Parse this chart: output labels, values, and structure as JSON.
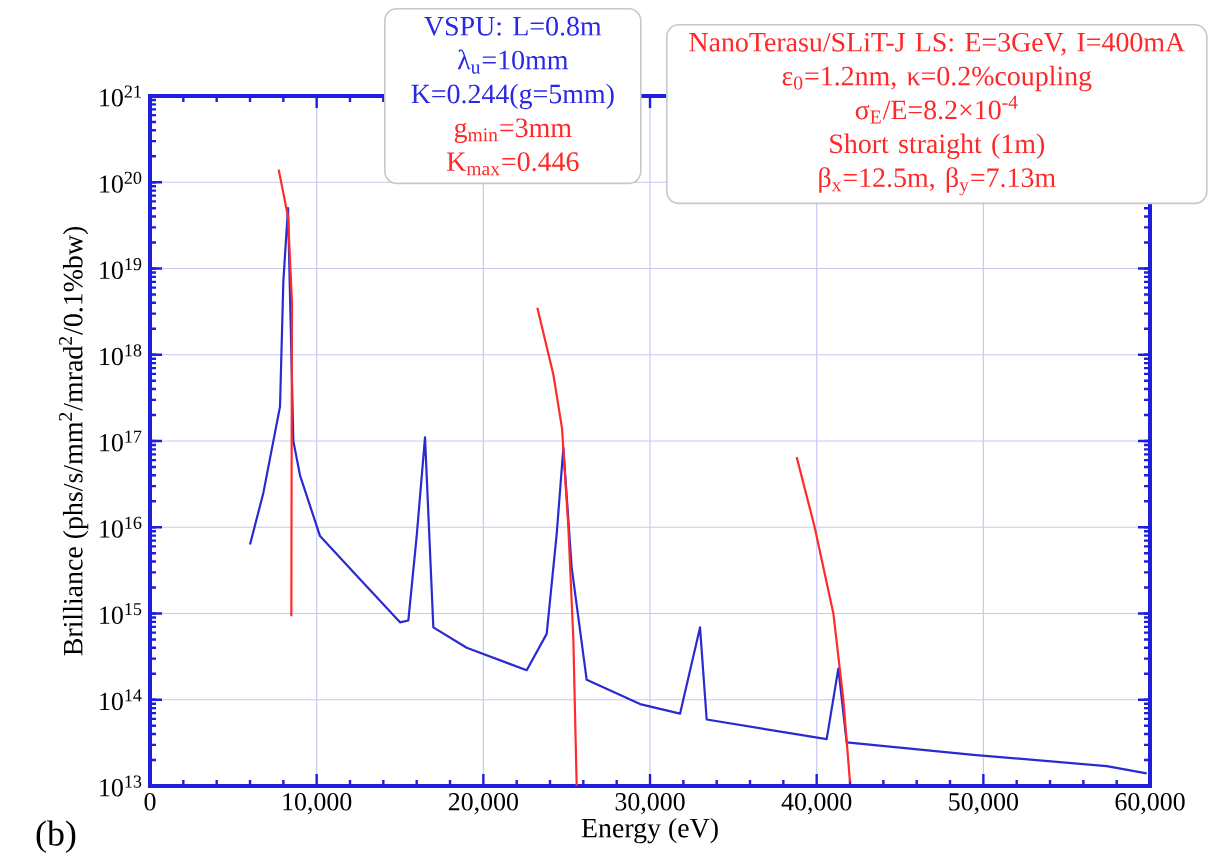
{
  "chart_data": {
    "type": "line",
    "xlabel": "Energy (eV)",
    "ylabel": "Brilliance (phs/s/mm$^{2}$/mrad$^{2}$/0.1%bw)",
    "x": [
      6000,
      6800,
      7800,
      8000,
      8280,
      8600,
      9000,
      10200,
      12600,
      15000,
      15500,
      16000,
      16500,
      17000,
      19000,
      22600,
      23800,
      24400,
      24800,
      25300,
      26200,
      29400,
      31800,
      33000,
      33400,
      40600,
      41300,
      41800,
      49400,
      57400,
      59800
    ],
    "series": [
      {
        "color": "#2a2ad0",
        "values": [
          6300000000000000.0,
          2.5e+16,
          2.5e+17,
          7.1e+18,
          5e+19,
          1e+17,
          4e+16,
          7900000000000000.0,
          2500000000000000.0,
          790000000000000.0,
          830000000000000.0,
          7900000000000000.0,
          1.1e+17,
          690000000000000.0,
          400000000000000.0,
          220000000000000.0,
          580000000000000.0,
          8300000000000000.0,
          8.3e+16,
          3400000000000000.0,
          170000000000000.0,
          89000000000000.0,
          69000000000000.0,
          690000000000000.0,
          59000000000000.0,
          35000000000000.0,
          230000000000000.0,
          32000000000000.0,
          23000000000000.0,
          17000000000000.0,
          14000000000000.0
        ]
      },
      {
        "color": "#ff2a2a",
        "x": [
          7720,
          8280,
          8520,
          8500,
          8480
        ],
        "values": [
          1.4e+20,
          4e+19,
          4e+18,
          1.4e+17,
          930000000000000.0
        ]
      },
      {
        "color": "#ff2a2a",
        "x": [
          23240,
          24200,
          24720,
          25100,
          25400,
          25600
        ],
        "values": [
          3.5e+18,
          5.9e+17,
          1.4e+17,
          1e+16,
          500000000000000.0,
          10000000000000.0
        ]
      },
      {
        "color": "#ff2a2a",
        "x": [
          38800,
          39880,
          41000,
          41600,
          42000
        ],
        "values": [
          6.5e+16,
          1e+16,
          1000000000000000.0,
          100000000000000.0,
          11000000000000.0
        ]
      }
    ],
    "log": "y",
    "grid": true,
    "marker": "none",
    "line_style": "solid",
    "xlim": [
      0,
      60000
    ],
    "ylim": [
      10000000000000.0,
      1e+21
    ],
    "xticks": [
      0,
      {
        "value": 10000,
        "label": "10,000"
      },
      {
        "value": 20000,
        "label": "20,000"
      },
      {
        "value": 30000,
        "label": "30,000"
      },
      {
        "value": 40000,
        "label": "40,000"
      },
      {
        "value": 50000,
        "label": "50,000"
      },
      {
        "value": 60000,
        "label": "60,000"
      }
    ],
    "yticks": [
      {
        "value": 10000000000000.0,
        "label": "10$^{13}$"
      },
      {
        "value": 100000000000000.0,
        "label": "10$^{14}$"
      },
      {
        "value": 1000000000000000.0,
        "label": "10$^{15}$"
      },
      {
        "value": 1e+16,
        "label": "10$^{16}$"
      },
      {
        "value": 1e+17,
        "label": "10$^{17}$"
      },
      {
        "value": 1e+18,
        "label": "10$^{18}$"
      },
      {
        "value": 1e+19,
        "label": "10$^{19}$"
      },
      {
        "value": 1e+20,
        "label": "10$^{20}$"
      },
      {
        "value": 1e+21,
        "label": "10$^{21}$"
      }
    ],
    "annotations": [
      "VSPU: L=0.8m",
      "λ$_{u}$=10mm",
      "K=0.244(g=5mm)",
      "g$_{min}$=3mm",
      "K$_{max}$=0.446",
      "NanoTerasu/SLiT-J LS: E=3GeV, I=400mA",
      "ε$_{0}$=1.2nm, κ=0.2%coupling",
      "σ$_{E}$/E=8.2×10$^{-4}$",
      "Short straight (1m)",
      "β$_{x}$=12.5m, β$_{y}$=7.13m",
      "(b)"
    ]
  }
}
